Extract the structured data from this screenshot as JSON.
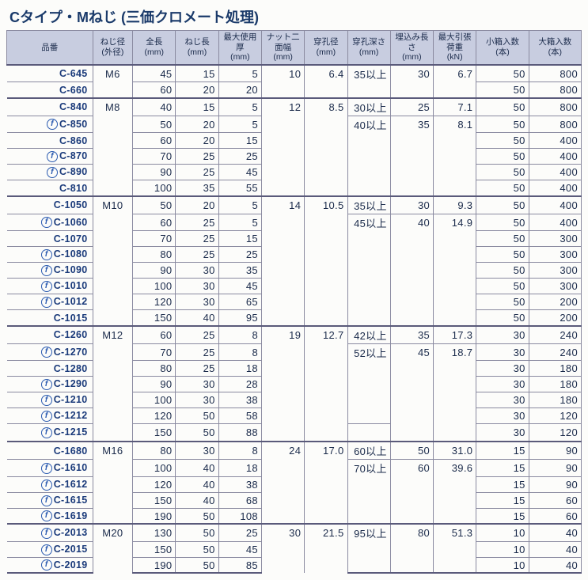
{
  "title": "Cタイプ・Mねじ (三価クロメート処理)",
  "columns": [
    "品番",
    "ねじ径\n(外径)",
    "全長\n(mm)",
    "ねじ長\n(mm)",
    "最大使用厚\n(mm)",
    "ナット二面幅\n(mm)",
    "穿孔径\n(mm)",
    "穿孔深さ\n(mm)",
    "埋込み長さ\n(mm)",
    "最大引張荷重\n(kN)",
    "小箱入数\n(本)",
    "大箱入数\n(本)"
  ],
  "groups": [
    {
      "dia": "M6",
      "nut": "10",
      "drill": "6.4",
      "rows": [
        {
          "c": "C-645",
          "len": "45",
          "tl": "15",
          "mt": "5",
          "dd": "35以上",
          "el": "30",
          "pl": "6.7",
          "sb": "50",
          "lb": "800",
          "icon": false
        },
        {
          "c": "C-660",
          "len": "60",
          "tl": "20",
          "mt": "20",
          "dd": "",
          "el": "",
          "pl": "",
          "sb": "50",
          "lb": "800",
          "icon": false
        }
      ]
    },
    {
      "dia": "M8",
      "nut": "12",
      "drill": "8.5",
      "rows": [
        {
          "c": "C-840",
          "len": "40",
          "tl": "15",
          "mt": "5",
          "dd": "30以上",
          "el": "25",
          "pl": "7.1",
          "sb": "50",
          "lb": "800",
          "icon": false
        },
        {
          "c": "C-850",
          "len": "50",
          "tl": "20",
          "mt": "5",
          "dd": "40以上",
          "el": "35",
          "pl": "8.1",
          "sb": "50",
          "lb": "800",
          "icon": true
        },
        {
          "c": "C-860",
          "len": "60",
          "tl": "20",
          "mt": "15",
          "dd": "",
          "el": "",
          "pl": "",
          "sb": "50",
          "lb": "400",
          "icon": false
        },
        {
          "c": "C-870",
          "len": "70",
          "tl": "25",
          "mt": "25",
          "dd": "",
          "el": "",
          "pl": "",
          "sb": "50",
          "lb": "400",
          "icon": true
        },
        {
          "c": "C-890",
          "len": "90",
          "tl": "25",
          "mt": "45",
          "dd": "",
          "el": "",
          "pl": "",
          "sb": "50",
          "lb": "400",
          "icon": true
        },
        {
          "c": "C-810",
          "len": "100",
          "tl": "35",
          "mt": "55",
          "dd": "",
          "el": "",
          "pl": "",
          "sb": "50",
          "lb": "400",
          "icon": false
        }
      ]
    },
    {
      "dia": "M10",
      "nut": "14",
      "drill": "10.5",
      "rows": [
        {
          "c": "C-1050",
          "len": "50",
          "tl": "20",
          "mt": "5",
          "dd": "35以上",
          "el": "30",
          "pl": "9.3",
          "sb": "50",
          "lb": "400",
          "icon": false
        },
        {
          "c": "C-1060",
          "len": "60",
          "tl": "25",
          "mt": "5",
          "dd": "45以上",
          "el": "40",
          "pl": "14.9",
          "sb": "50",
          "lb": "400",
          "icon": true
        },
        {
          "c": "C-1070",
          "len": "70",
          "tl": "25",
          "mt": "15",
          "dd": "",
          "el": "",
          "pl": "",
          "sb": "50",
          "lb": "300",
          "icon": false
        },
        {
          "c": "C-1080",
          "len": "80",
          "tl": "25",
          "mt": "25",
          "dd": "",
          "el": "",
          "pl": "",
          "sb": "50",
          "lb": "300",
          "icon": true
        },
        {
          "c": "C-1090",
          "len": "90",
          "tl": "30",
          "mt": "35",
          "dd": "",
          "el": "",
          "pl": "",
          "sb": "50",
          "lb": "300",
          "icon": true
        },
        {
          "c": "C-1010",
          "len": "100",
          "tl": "30",
          "mt": "45",
          "dd": "",
          "el": "",
          "pl": "",
          "sb": "50",
          "lb": "300",
          "icon": true
        },
        {
          "c": "C-1012",
          "len": "120",
          "tl": "30",
          "mt": "65",
          "dd": "",
          "el": "",
          "pl": "",
          "sb": "50",
          "lb": "200",
          "icon": true
        },
        {
          "c": "C-1015",
          "len": "150",
          "tl": "40",
          "mt": "95",
          "dd": "",
          "el": "",
          "pl": "",
          "sb": "50",
          "lb": "200",
          "icon": false
        }
      ]
    },
    {
      "dia": "M12",
      "nut": "19",
      "drill": "12.7",
      "rows": [
        {
          "c": "C-1260",
          "len": "60",
          "tl": "25",
          "mt": "8",
          "dd": "42以上",
          "el": "35",
          "pl": "17.3",
          "sb": "30",
          "lb": "240",
          "icon": false
        },
        {
          "c": "C-1270",
          "len": "70",
          "tl": "25",
          "mt": "8",
          "dd": "52以上",
          "el": "45",
          "pl": "18.7",
          "sb": "30",
          "lb": "240",
          "icon": true
        },
        {
          "c": "C-1280",
          "len": "80",
          "tl": "25",
          "mt": "18",
          "dd": "",
          "el": "",
          "pl": "",
          "sb": "30",
          "lb": "180",
          "icon": false
        },
        {
          "c": "C-1290",
          "len": "90",
          "tl": "30",
          "mt": "28",
          "dd": "",
          "el": "",
          "pl": "",
          "sb": "30",
          "lb": "180",
          "icon": true
        },
        {
          "c": "C-1210",
          "len": "100",
          "tl": "30",
          "mt": "38",
          "dd": "",
          "el": "",
          "pl": "",
          "sb": "30",
          "lb": "180",
          "icon": true
        },
        {
          "c": "C-1212",
          "len": "120",
          "tl": "50",
          "mt": "58",
          "dd": "",
          "el": "",
          "pl": "",
          "sb": "30",
          "lb": "120",
          "icon": true
        },
        {
          "c": "C-1215",
          "len": "150",
          "tl": "50",
          "mt": "88",
          "dd": "　",
          "el": "",
          "pl": "",
          "sb": "30",
          "lb": "120",
          "icon": true
        }
      ]
    },
    {
      "dia": "M16",
      "nut": "24",
      "drill": "17.0",
      "rows": [
        {
          "c": "C-1680",
          "len": "80",
          "tl": "30",
          "mt": "8",
          "dd": "60以上",
          "el": "50",
          "pl": "31.0",
          "sb": "15",
          "lb": "90",
          "icon": false
        },
        {
          "c": "C-1610",
          "len": "100",
          "tl": "40",
          "mt": "18",
          "dd": "70以上",
          "el": "60",
          "pl": "39.6",
          "sb": "15",
          "lb": "90",
          "icon": true
        },
        {
          "c": "C-1612",
          "len": "120",
          "tl": "40",
          "mt": "38",
          "dd": "",
          "el": "",
          "pl": "",
          "sb": "15",
          "lb": "90",
          "icon": true
        },
        {
          "c": "C-1615",
          "len": "150",
          "tl": "40",
          "mt": "68",
          "dd": "",
          "el": "",
          "pl": "",
          "sb": "15",
          "lb": "60",
          "icon": true
        },
        {
          "c": "C-1619",
          "len": "190",
          "tl": "50",
          "mt": "108",
          "dd": "",
          "el": "",
          "pl": "",
          "sb": "15",
          "lb": "60",
          "icon": true
        }
      ]
    },
    {
      "dia": "M20",
      "nut": "30",
      "drill": "21.5",
      "rows": [
        {
          "c": "C-2013",
          "len": "130",
          "tl": "50",
          "mt": "25",
          "dd": "95以上",
          "el": "80",
          "pl": "51.3",
          "sb": "10",
          "lb": "40",
          "icon": true
        },
        {
          "c": "C-2015",
          "len": "150",
          "tl": "50",
          "mt": "45",
          "dd": "",
          "el": "",
          "pl": "",
          "sb": "10",
          "lb": "40",
          "icon": true
        },
        {
          "c": "C-2019",
          "len": "190",
          "tl": "50",
          "mt": "85",
          "dd": "",
          "el": "",
          "pl": "",
          "sb": "10",
          "lb": "40",
          "icon": true
        }
      ]
    }
  ]
}
